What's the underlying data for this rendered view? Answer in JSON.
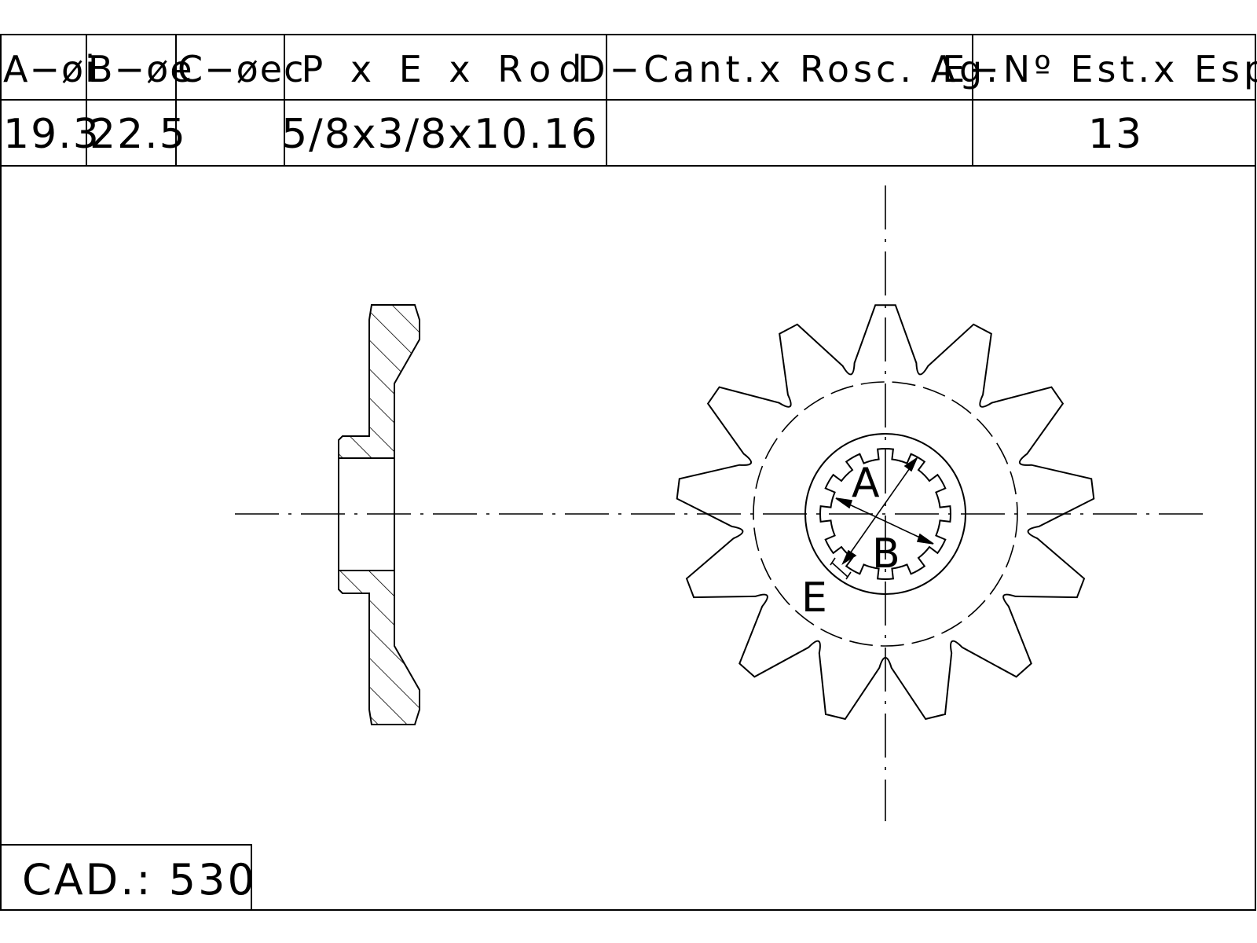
{
  "spec_table": {
    "headers": {
      "a": "A−øi",
      "b": "B−øe",
      "c": "C−øec",
      "pxe": "P x E x Rod",
      "d": "D−Cant.x Rosc. Ag.",
      "e": "E−Nº Est.x Esp."
    },
    "values": {
      "a": "19.3",
      "b": "22.5",
      "c": "",
      "pxe": "5/8x3/8x10.16",
      "d": "",
      "e": "13"
    }
  },
  "drawing": {
    "labels": {
      "a": "A",
      "b": "B",
      "e": "E"
    },
    "teeth": 13,
    "splines": 12
  },
  "cad_box": {
    "label": "CAD.: 530"
  }
}
